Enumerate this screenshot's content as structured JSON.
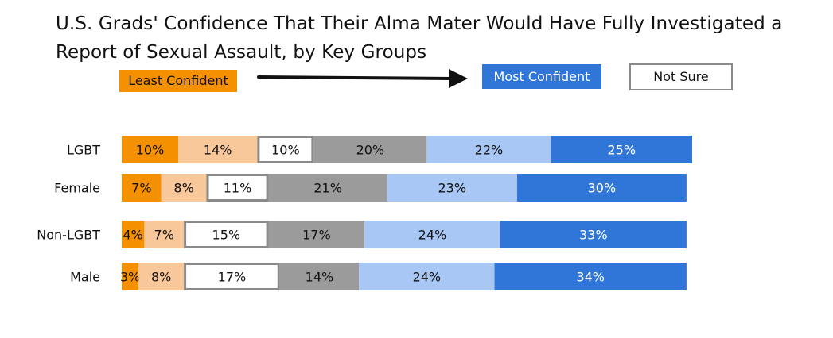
{
  "chart_data": {
    "type": "bar",
    "orientation": "horizontal",
    "stacked": true,
    "title": "U.S. Grads' Confidence That Their Alma Mater Would Have Fully Investigated a Report of Sexual Assault, by Key Groups",
    "legend": {
      "least_label": "Least Confident",
      "most_label": "Most Confident",
      "not_sure_label": "Not Sure",
      "placement": "top"
    },
    "categories": [
      "LGBT",
      "Female",
      "Non-LGBT",
      "Male"
    ],
    "series": [
      {
        "values": [
          10,
          7,
          4,
          3
        ],
        "color": "#f59100",
        "text_color": "#111111"
      },
      {
        "values": [
          14,
          8,
          7,
          8
        ],
        "color": "#f8c89a",
        "text_color": "#111111"
      },
      {
        "values": [
          10,
          11,
          15,
          17
        ],
        "color": "#ffffff",
        "text_color": "#111111",
        "outlined": true
      },
      {
        "values": [
          20,
          21,
          17,
          14
        ],
        "color": "#9b9b9b",
        "text_color": "#111111"
      },
      {
        "values": [
          22,
          23,
          24,
          24
        ],
        "color": "#a9c7f4",
        "text_color": "#111111"
      },
      {
        "values": [
          25,
          30,
          33,
          34
        ],
        "color": "#2f76d8",
        "text_color": "#ffffff"
      }
    ],
    "value_labels": [
      [
        "10%",
        "14%",
        "10%",
        "20%",
        "22%",
        "25%"
      ],
      [
        "7%",
        "8%",
        "11%",
        "21%",
        "23%",
        "30%"
      ],
      [
        "4%",
        "7%",
        "15%",
        "17%",
        "24%",
        "33%"
      ],
      [
        "3%",
        "8%",
        "17%",
        "14%",
        "24%",
        "34%"
      ]
    ],
    "xlim": [
      0,
      101
    ],
    "grid": false
  }
}
